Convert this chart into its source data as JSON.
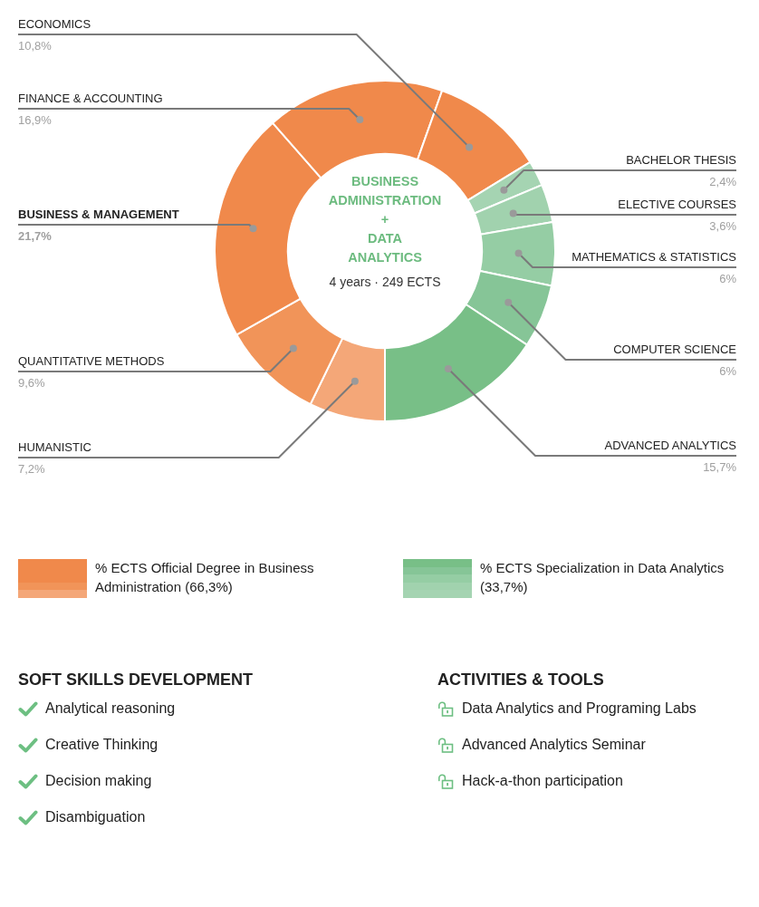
{
  "chart_data": [
    {
      "type": "donut",
      "title": "BUSINESS ADMINISTRATION + DATA ANALYTICS",
      "subtitle": "4 years · 249 ECTS",
      "categories": [
        "HUMANISTIC",
        "QUANTITATIVE METHODS",
        "BUSINESS & MANAGEMENT",
        "FINANCE & ACCOUNTING",
        "ECONOMICS",
        "BACHELOR THESIS",
        "ELECTIVE COURSES",
        "MATHEMATICS & STATISTICS",
        "COMPUTER SCIENCE",
        "ADVANCED ANALYTICS"
      ],
      "values": [
        7.2,
        9.6,
        21.7,
        16.9,
        10.8,
        2.4,
        3.6,
        6,
        6,
        15.7
      ],
      "value_labels": [
        "7,2%",
        "9,6%",
        "21,7%",
        "16,9%",
        "10,8%",
        "2,4%",
        "3,6%",
        "6%",
        "6%",
        "15,7%"
      ],
      "colors": [
        "#f4a778",
        "#f19459",
        "#f0894b",
        "#f0894b",
        "#f0894b",
        "#a5d4b2",
        "#a1d2ae",
        "#95cda4",
        "#86c597",
        "#78bf87"
      ],
      "annotations": [
        "% ECTS Official Degree in Business Administration (66,3%)",
        "% ECTS Specialization in Data Analytics (33,7%)"
      ]
    },
    {
      "type": "other",
      "title": "SOFT SKILLS DEVELOPMENT",
      "annotations": [
        "Analytical reasoning",
        "Creative Thinking",
        "Decision making",
        "Disambiguation"
      ]
    },
    {
      "type": "other",
      "title": "ACTIVITIES & TOOLS",
      "annotations": [
        "Data Analytics and Programing Labs",
        "Advanced Analytics Seminar",
        "Hack-a-thon participation"
      ]
    }
  ]
}
